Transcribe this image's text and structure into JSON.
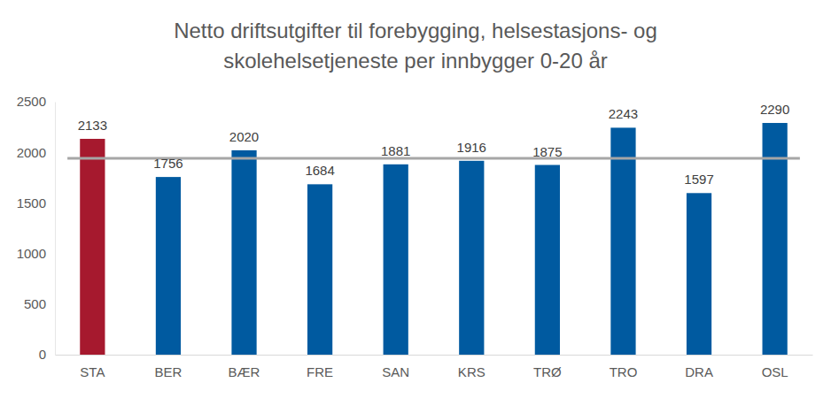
{
  "chart_data": {
    "type": "bar",
    "title": "Netto driftsutgifter til forebygging, helsestasjons- og\nskolehelsetjeneste per innbygger 0-20 år",
    "categories": [
      "STA",
      "BER",
      "BÆR",
      "FRE",
      "SAN",
      "KRS",
      "TRØ",
      "TRO",
      "DRA",
      "OSL"
    ],
    "values": [
      2133,
      1756,
      2020,
      1684,
      1881,
      1916,
      1875,
      2243,
      1597,
      2290
    ],
    "colors": [
      "#a6192e",
      "#005aa0",
      "#005aa0",
      "#005aa0",
      "#005aa0",
      "#005aa0",
      "#005aa0",
      "#005aa0",
      "#005aa0",
      "#005aa0"
    ],
    "reference_line": 1940,
    "ylim": [
      0,
      2500
    ],
    "yticks": [
      0,
      500,
      1000,
      1500,
      2000,
      2500
    ],
    "grid": false,
    "data_labels": true
  }
}
